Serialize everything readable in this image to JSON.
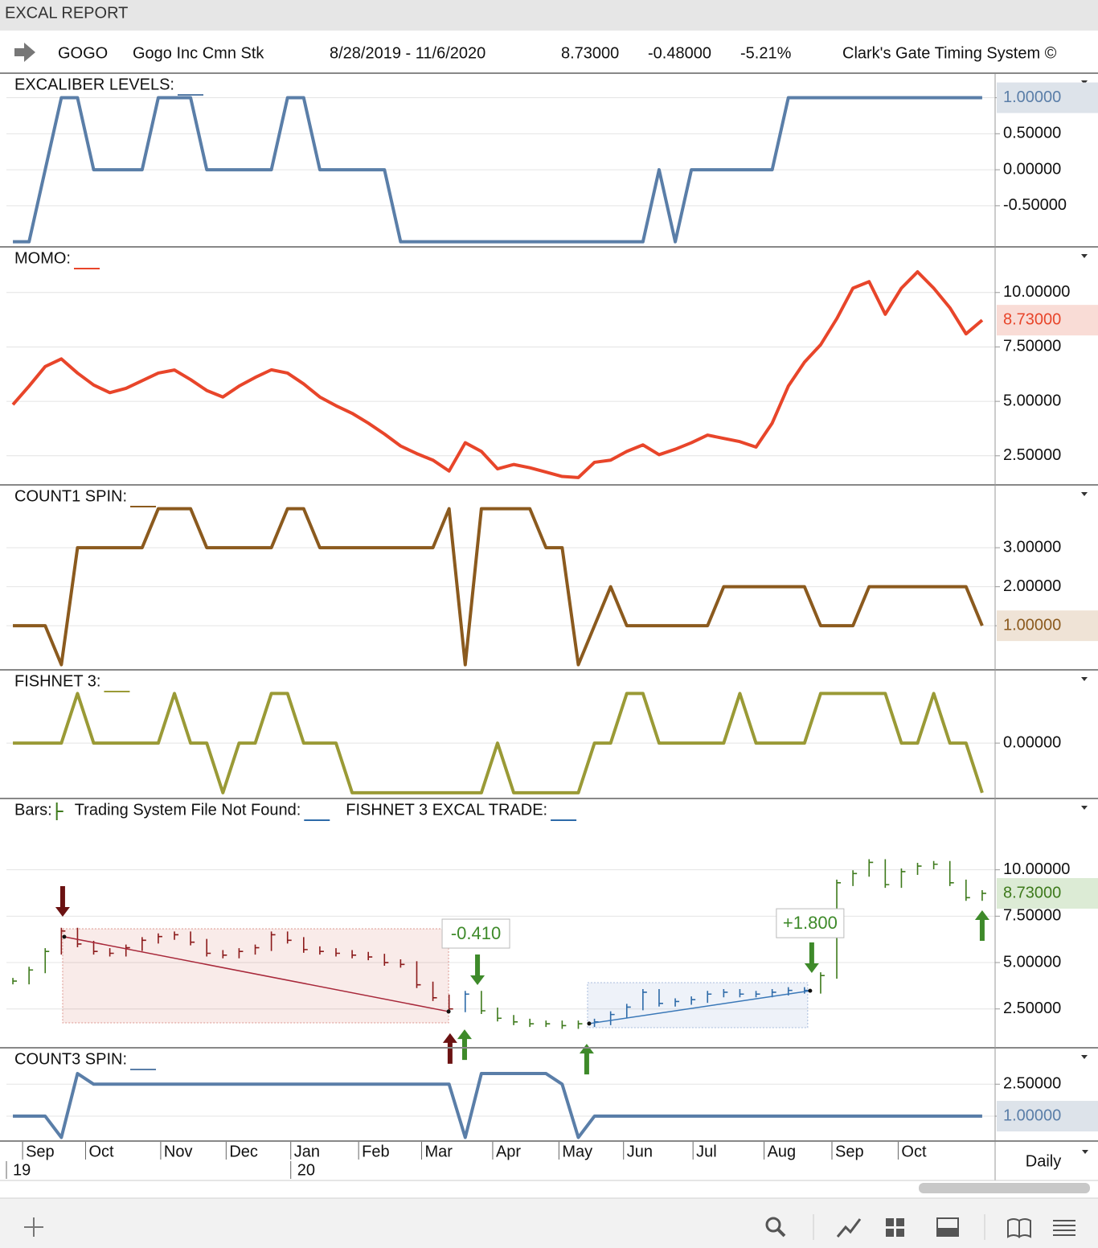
{
  "window_title": "EXCAL REPORT",
  "header": {
    "symbol": "GOGO",
    "name": "Gogo Inc Cmn Stk",
    "range": "8/28/2019 - 11/6/2020",
    "last": "8.73000",
    "change": "-0.48000",
    "change_pct": "-5.21%",
    "system": "Clark's Gate Timing System ©"
  },
  "x_axis": {
    "xlim": [
      -0.4,
      60.8
    ],
    "xticks": [
      {
        "value": 0.6,
        "label": "Sep"
      },
      {
        "value": 4.5,
        "label": "Oct"
      },
      {
        "value": 9.15,
        "label": "Nov"
      },
      {
        "value": 13.2,
        "label": "Dec"
      },
      {
        "value": 17.2,
        "label": "Jan"
      },
      {
        "value": 21.4,
        "label": "Feb"
      },
      {
        "value": 25.3,
        "label": "Mar"
      },
      {
        "value": 29.7,
        "label": "Apr"
      },
      {
        "value": 33.8,
        "label": "May"
      },
      {
        "value": 37.8,
        "label": "Jun"
      },
      {
        "value": 42.1,
        "label": "Jul"
      },
      {
        "value": 46.5,
        "label": "Aug"
      },
      {
        "value": 50.7,
        "label": "Sep"
      },
      {
        "value": 54.8,
        "label": "Oct"
      }
    ],
    "year_ticks": [
      {
        "value": -0.4,
        "label": "19"
      },
      {
        "value": 17.2,
        "label": "20"
      }
    ]
  },
  "interval": "Daily",
  "chart_data": [
    {
      "type": "line",
      "ylim": [
        -1.06,
        1.33
      ],
      "grid": true,
      "label_bg": "#dde3ea",
      "yticks": [
        {
          "value": 1,
          "label": "1.00000"
        },
        {
          "value": 0.5,
          "label": "0.50000"
        },
        {
          "value": 0,
          "label": "0.00000"
        },
        {
          "value": -0.5,
          "label": "-0.50000"
        }
      ],
      "series": [
        {
          "name": "EXCALIBER LEVELS:",
          "color": "#5a7ea8",
          "values": [
            -1,
            -1,
            0,
            1,
            1,
            0,
            0,
            0,
            0,
            1,
            1,
            1,
            0,
            0,
            0,
            0,
            0,
            1,
            1,
            0,
            0,
            0,
            0,
            0,
            -1,
            -1,
            -1,
            -1,
            -1,
            -1,
            -1,
            -1,
            -1,
            -1,
            -1,
            -1,
            -1,
            -1,
            -1,
            -1,
            0,
            -1,
            0,
            0,
            0,
            0,
            0,
            0,
            1,
            1,
            1,
            1,
            1,
            1,
            1,
            1,
            1,
            1,
            1,
            1,
            1
          ]
        }
      ]
    },
    {
      "type": "line",
      "ylim": [
        1.2,
        12.06
      ],
      "grid": true,
      "label_bg": "#f9dcd6",
      "yticks": [
        {
          "value": 10,
          "label": "10.00000"
        },
        {
          "value": 7.5,
          "label": "7.50000"
        },
        {
          "value": 5,
          "label": "5.00000"
        },
        {
          "value": 2.5,
          "label": "2.50000"
        }
      ],
      "series": [
        {
          "name": "MOMO:",
          "color": "#e8452a",
          "values": [
            4.85,
            5.7,
            6.6,
            6.95,
            6.3,
            5.75,
            5.4,
            5.6,
            5.95,
            6.3,
            6.44,
            6.0,
            5.5,
            5.2,
            5.7,
            6.1,
            6.45,
            6.3,
            5.8,
            5.2,
            4.8,
            4.45,
            4.0,
            3.5,
            2.95,
            2.6,
            2.3,
            1.8,
            3.1,
            2.7,
            1.9,
            2.1,
            1.95,
            1.75,
            1.55,
            1.5,
            2.2,
            2.3,
            2.7,
            3.0,
            2.55,
            2.8,
            3.1,
            3.45,
            3.3,
            3.15,
            2.9,
            4.0,
            5.7,
            6.8,
            7.6,
            8.8,
            10.2,
            10.5,
            9.0,
            10.2,
            10.95,
            10.2,
            9.3,
            8.1,
            8.73
          ],
          "value_labels": [
            null,
            null,
            null,
            null,
            null,
            null,
            null,
            null,
            null,
            null,
            null,
            null,
            null,
            null,
            null,
            null,
            null,
            null,
            null,
            null,
            null,
            null,
            null,
            null,
            null,
            null,
            null,
            null,
            null,
            null,
            null,
            null,
            null,
            null,
            null,
            null,
            null,
            null,
            null,
            null,
            null,
            null,
            null,
            null,
            null,
            null,
            null,
            null,
            null,
            null,
            null,
            null,
            null,
            null,
            null,
            null,
            null,
            null,
            null,
            null,
            "8.73000"
          ]
        }
      ]
    },
    {
      "type": "line",
      "ylim": [
        -0.11,
        4.59
      ],
      "grid": true,
      "label_bg": "#efe3d6",
      "yticks": [
        {
          "value": 3,
          "label": "3.00000"
        },
        {
          "value": 2,
          "label": "2.00000"
        },
        {
          "value": 1,
          "label": "1.00000"
        }
      ],
      "series": [
        {
          "name": "COUNT1 SPIN:",
          "color": "#8b5a1e",
          "values": [
            1,
            1,
            1,
            0,
            3,
            3,
            3,
            3,
            3,
            4,
            4,
            4,
            3,
            3,
            3,
            3,
            3,
            4,
            4,
            3,
            3,
            3,
            3,
            3,
            3,
            3,
            3,
            4,
            0,
            4,
            4,
            4,
            4,
            3,
            3,
            0,
            1,
            2,
            1,
            1,
            1,
            1,
            1,
            1,
            2,
            2,
            2,
            2,
            2,
            2,
            1,
            1,
            1,
            2,
            2,
            2,
            2,
            2,
            2,
            2,
            1
          ]
        }
      ]
    },
    {
      "type": "line",
      "ylim": [
        -1.1,
        1.46
      ],
      "grid": true,
      "label_bg": "#e9ecd6",
      "yticks": [
        {
          "value": 0,
          "label": "0.00000"
        }
      ],
      "series": [
        {
          "name": "FISHNET 3:",
          "color": "#9a9a36",
          "values": [
            0,
            0,
            0,
            0,
            1,
            0,
            0,
            0,
            0,
            0,
            1,
            0,
            0,
            -1,
            0,
            0,
            1,
            1,
            0,
            0,
            0,
            -1,
            -1,
            -1,
            -1,
            -1,
            -1,
            -1,
            -1,
            -1,
            0,
            -1,
            -1,
            -1,
            -1,
            -1,
            0,
            0,
            1,
            1,
            0,
            0,
            0,
            0,
            0,
            1,
            0,
            0,
            0,
            0,
            1,
            1,
            1,
            1,
            1,
            0,
            0,
            1,
            0,
            0,
            -1
          ]
        }
      ]
    },
    {
      "type": "price",
      "ylim": [
        0.45,
        13.8
      ],
      "grid": true,
      "label_bg": "#dcebd5",
      "yticks": [
        {
          "value": 10,
          "label": "10.00000"
        },
        {
          "value": 7.5,
          "label": "7.50000"
        },
        {
          "value": 5,
          "label": "5.00000"
        },
        {
          "value": 2.5,
          "label": "2.50000"
        }
      ],
      "legend": [
        {
          "name": "Trading System File Not Found:",
          "color": "#2d6aa8"
        },
        {
          "name": "FISHNET 3 EXCAL TRADE:",
          "color": "#2d6aa8"
        }
      ],
      "series": [
        {
          "name": "Bars:",
          "color": "#3e7a1c",
          "values": [
            4.0,
            4.6,
            5.6,
            6.7,
            6.0,
            5.6,
            5.5,
            5.8,
            6.2,
            6.4,
            6.5,
            6.1,
            5.5,
            5.4,
            5.6,
            5.8,
            6.5,
            6.2,
            5.7,
            5.6,
            5.5,
            5.4,
            5.3,
            5.0,
            4.9,
            3.8,
            3.1,
            2.5,
            3.3,
            2.4,
            2.0,
            1.8,
            1.7,
            1.7,
            1.6,
            1.7,
            1.8,
            2.2,
            2.6,
            3.4,
            2.8,
            2.9,
            3.0,
            3.3,
            3.4,
            3.3,
            3.3,
            3.4,
            3.5,
            3.5,
            4.3,
            9.3,
            9.8,
            10.4,
            9.2,
            9.9,
            10.2,
            10.3,
            9.3,
            8.5,
            8.73
          ],
          "colors": [
            "#3e7a1c",
            "#3e7a1c",
            "#3e7a1c",
            "#8b1a1a",
            "#8b1a1a",
            "#8b1a1a",
            "#8b1a1a",
            "#8b1a1a",
            "#8b1a1a",
            "#8b1a1a",
            "#8b1a1a",
            "#8b1a1a",
            "#8b1a1a",
            "#8b1a1a",
            "#8b1a1a",
            "#8b1a1a",
            "#8b1a1a",
            "#8b1a1a",
            "#8b1a1a",
            "#8b1a1a",
            "#8b1a1a",
            "#8b1a1a",
            "#8b1a1a",
            "#8b1a1a",
            "#8b1a1a",
            "#8b1a1a",
            "#8b1a1a",
            "#8b1a1a",
            "#2d6aa8",
            "#3e7a1c",
            "#3e7a1c",
            "#3e7a1c",
            "#3e7a1c",
            "#3e7a1c",
            "#3e7a1c",
            "#3e7a1c",
            "#2d6aa8",
            "#2d6aa8",
            "#2d6aa8",
            "#2d6aa8",
            "#2d6aa8",
            "#2d6aa8",
            "#2d6aa8",
            "#2d6aa8",
            "#2d6aa8",
            "#2d6aa8",
            "#2d6aa8",
            "#2d6aa8",
            "#2d6aa8",
            "#2d6aa8",
            "#3e7a1c",
            "#3e7a1c",
            "#3e7a1c",
            "#3e7a1c",
            "#3e7a1c",
            "#3e7a1c",
            "#3e7a1c",
            "#3e7a1c",
            "#3e7a1c",
            "#3e7a1c",
            "#3e7a1c"
          ],
          "value_labels": [
            null,
            null,
            null,
            null,
            null,
            null,
            null,
            null,
            null,
            null,
            null,
            null,
            null,
            null,
            null,
            null,
            null,
            null,
            null,
            null,
            null,
            null,
            null,
            null,
            null,
            null,
            null,
            null,
            null,
            null,
            null,
            null,
            null,
            null,
            null,
            null,
            null,
            null,
            null,
            null,
            null,
            null,
            null,
            null,
            null,
            null,
            null,
            null,
            null,
            null,
            null,
            null,
            null,
            null,
            null,
            null,
            null,
            null,
            null,
            null,
            "8.73000"
          ]
        }
      ],
      "zones": [
        {
          "x": [
            3.08,
            26.97
          ],
          "y": [
            1.75,
            6.82
          ],
          "color": "#c0392b"
        },
        {
          "x": [
            35.57,
            49.2
          ],
          "y": [
            1.49,
            3.92
          ],
          "color": "#5b82c0"
        }
      ],
      "trendlines": [
        {
          "x": [
            3.18,
            26.97
          ],
          "y": [
            6.39,
            2.36
          ],
          "color": "#a8283a"
        },
        {
          "x": [
            35.67,
            49.35
          ],
          "y": [
            1.71,
            3.48
          ],
          "color": "#3a78b8"
        }
      ],
      "signals": [
        {
          "x": 3.08,
          "y": 7.47,
          "dir": "down",
          "color": "#6b1212"
        },
        {
          "x": 27.06,
          "y": 1.19,
          "dir": "up",
          "color": "#6b1212"
        },
        {
          "x": 27.96,
          "y": 1.4,
          "dir": "up",
          "color": "#3e8a2a"
        },
        {
          "x": 28.76,
          "y": 3.79,
          "dir": "down",
          "color": "#3e8a2a"
        },
        {
          "x": 35.52,
          "y": 0.62,
          "dir": "up",
          "color": "#3e8a2a"
        },
        {
          "x": 49.45,
          "y": 4.44,
          "dir": "down",
          "color": "#3e8a2a"
        },
        {
          "x": 60.0,
          "y": 7.82,
          "dir": "up",
          "color": "#3e8a2a"
        }
      ],
      "annotations": [
        {
          "text": "-0.410",
          "x": 28.66,
          "y": 6.56
        },
        {
          "text": "+1.800",
          "x": 49.35,
          "y": 7.12
        }
      ]
    },
    {
      "type": "line",
      "ylim": [
        -0.13,
        4.17
      ],
      "grid": true,
      "label_bg": "#dde3ea",
      "yticks": [
        {
          "value": 2.5,
          "label": "2.50000"
        },
        {
          "value": 1,
          "label": "1.00000"
        }
      ],
      "series": [
        {
          "name": "COUNT3 SPIN:",
          "color": "#5a7ea8",
          "values": [
            1,
            1,
            1,
            0,
            3,
            2.5,
            2.5,
            2.5,
            2.5,
            2.5,
            2.5,
            2.5,
            2.5,
            2.5,
            2.5,
            2.5,
            2.5,
            2.5,
            2.5,
            2.5,
            2.5,
            2.5,
            2.5,
            2.5,
            2.5,
            2.5,
            2.5,
            2.5,
            0,
            3,
            3,
            3,
            3,
            3,
            2.5,
            0,
            1,
            1,
            1,
            1,
            1,
            1,
            1,
            1,
            1,
            1,
            1,
            1,
            1,
            1,
            1,
            1,
            1,
            1,
            1,
            1,
            1,
            1,
            1,
            1,
            1
          ]
        }
      ]
    }
  ]
}
